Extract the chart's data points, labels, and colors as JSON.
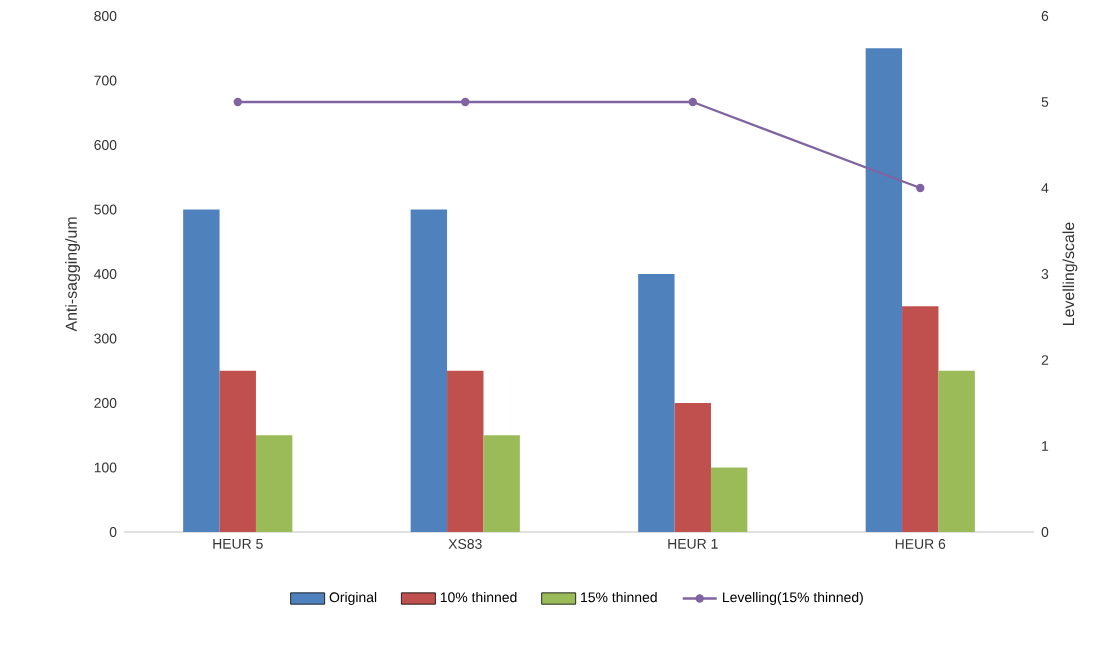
{
  "chart_data": {
    "type": "bar",
    "categories": [
      "HEUR 5",
      "XS83",
      "HEUR 1",
      "HEUR 6"
    ],
    "ylabel": "Anti-sagging/um",
    "y2label": "Levelling/scale",
    "ylim": [
      0,
      800
    ],
    "yticks": [
      0,
      100,
      200,
      300,
      400,
      500,
      600,
      700,
      800
    ],
    "y2lim": [
      0,
      6
    ],
    "y2ticks": [
      0,
      1,
      2,
      3,
      4,
      5,
      6
    ],
    "legend": "bottom",
    "marker": "circle",
    "line_style": "solid",
    "series": [
      {
        "name": "Original",
        "color": "#4f81bd",
        "values": [
          500,
          500,
          400,
          750
        ]
      },
      {
        "name": "10% thinned",
        "color": "#c0504d",
        "values": [
          250,
          250,
          200,
          350
        ]
      },
      {
        "name": "15% thinned",
        "color": "#9bbb59",
        "values": [
          150,
          150,
          100,
          250
        ]
      },
      {
        "name": "Levelling(15% thinned)",
        "color": "#8064a2",
        "type": "line",
        "axis": "y2",
        "values": [
          5,
          5,
          5,
          4
        ]
      }
    ]
  }
}
